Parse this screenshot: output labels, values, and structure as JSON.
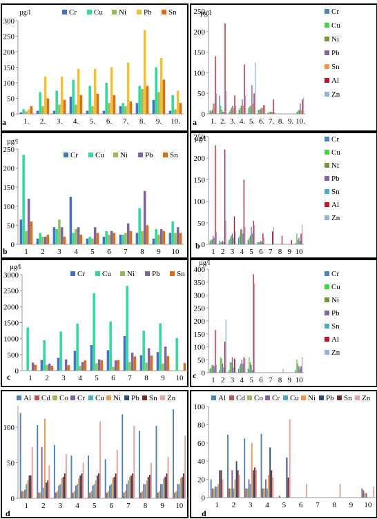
{
  "chart_data": [
    {
      "id": "aL",
      "type": "bar",
      "ylabel": "µg/l",
      "panel_letter": "a",
      "ylim": [
        0,
        300
      ],
      "yticks": [
        0,
        50,
        100,
        150,
        200,
        250,
        300
      ],
      "categories": [
        "1.",
        "2.",
        "3.",
        "4.",
        "5.",
        "6.",
        "7.",
        "8.",
        "9.",
        "10."
      ],
      "legend_position": "top",
      "series": [
        {
          "name": "Cr",
          "color": "#4472c4",
          "values": [
            5,
            10,
            10,
            55,
            10,
            10,
            25,
            35,
            45,
            10
          ]
        },
        {
          "name": "Cu",
          "color": "#2edc9a",
          "values": [
            15,
            70,
            75,
            110,
            90,
            100,
            35,
            90,
            150,
            60
          ]
        },
        {
          "name": "Ni",
          "color": "#9bbb59",
          "values": [
            8,
            25,
            30,
            30,
            25,
            35,
            25,
            80,
            70,
            15
          ]
        },
        {
          "name": "Pb",
          "color": "#f2c12e",
          "values": [
            15,
            120,
            120,
            145,
            145,
            150,
            165,
            270,
            180,
            75
          ]
        },
        {
          "name": "Sn",
          "color": "#e46c0a",
          "values": [
            25,
            50,
            45,
            60,
            65,
            60,
            40,
            90,
            110,
            35
          ]
        }
      ]
    },
    {
      "id": "aR",
      "type": "bar",
      "ylabel": "µg/l",
      "panel_letter": "a",
      "ylim": [
        0,
        250
      ],
      "yticks": [
        0,
        50,
        100,
        150,
        200,
        250
      ],
      "categories": [
        "1.",
        "2.",
        "3.",
        "4.",
        "5.",
        "6.",
        "7.",
        "8.",
        "9.",
        "10."
      ],
      "legend_position": "right",
      "series": [
        {
          "name": "Cr",
          "color": "#4f81bd",
          "values": [
            8,
            45,
            5,
            10,
            15,
            10,
            3,
            0,
            0,
            5
          ]
        },
        {
          "name": "Cu",
          "color": "#3ddc3d",
          "values": [
            5,
            20,
            10,
            15,
            18,
            10,
            3,
            0,
            0,
            8
          ]
        },
        {
          "name": "Ni",
          "color": "#77933c",
          "values": [
            10,
            10,
            15,
            20,
            20,
            12,
            5,
            0,
            0,
            10
          ]
        },
        {
          "name": "Pb",
          "color": "#8064a2",
          "values": [
            25,
            5,
            20,
            35,
            70,
            15,
            5,
            0,
            0,
            25
          ]
        },
        {
          "name": "Sn",
          "color": "#f79646",
          "values": [
            25,
            5,
            15,
            20,
            25,
            15,
            5,
            0,
            0,
            8
          ]
        },
        {
          "name": "Al",
          "color": "#c0142c",
          "values": [
            140,
            220,
            45,
            120,
            50,
            22,
            35,
            0,
            0,
            35
          ]
        },
        {
          "name": "Zn",
          "color": "#95b3d7",
          "values": [
            50,
            55,
            20,
            45,
            125,
            20,
            5,
            0,
            0,
            40
          ]
        }
      ]
    },
    {
      "id": "bL",
      "type": "bar",
      "ylabel": "µg/l",
      "panel_letter": "b",
      "ylim": [
        0,
        250
      ],
      "yticks": [
        0,
        50,
        100,
        150,
        200,
        250
      ],
      "categories": [
        "1",
        "2",
        "3",
        "4",
        "5",
        "6",
        "7",
        "8",
        "9",
        "10"
      ],
      "legend_position": "top",
      "series": [
        {
          "name": "Cr",
          "color": "#4472c4",
          "values": [
            65,
            15,
            45,
            125,
            15,
            20,
            25,
            30,
            15,
            30
          ]
        },
        {
          "name": "Cu",
          "color": "#2edc9a",
          "values": [
            235,
            30,
            40,
            30,
            20,
            35,
            25,
            95,
            40,
            60
          ]
        },
        {
          "name": "Ni",
          "color": "#9bbb59",
          "values": [
            35,
            20,
            65,
            40,
            15,
            25,
            30,
            35,
            25,
            30
          ]
        },
        {
          "name": "Pb",
          "color": "#8064a2",
          "values": [
            120,
            20,
            45,
            45,
            45,
            35,
            55,
            140,
            40,
            45
          ]
        },
        {
          "name": "Sn",
          "color": "#e46c0a",
          "values": [
            60,
            25,
            20,
            25,
            30,
            30,
            35,
            50,
            35,
            30
          ]
        }
      ]
    },
    {
      "id": "bR",
      "type": "bar",
      "ylabel": "µg/l",
      "panel_letter": "b",
      "ylim": [
        0,
        250
      ],
      "yticks": [
        0,
        50,
        100,
        150,
        200,
        250
      ],
      "categories": [
        "1",
        "2",
        "3",
        "4",
        "5",
        "6",
        "7",
        "8",
        "9",
        "10"
      ],
      "legend_position": "right",
      "series": [
        {
          "name": "Cr",
          "color": "#4f81bd",
          "values": [
            8,
            8,
            10,
            15,
            10,
            5,
            0,
            0,
            0,
            3
          ]
        },
        {
          "name": "Cu",
          "color": "#3ddc3d",
          "values": [
            10,
            5,
            15,
            20,
            15,
            5,
            0,
            0,
            0,
            25
          ]
        },
        {
          "name": "Ni",
          "color": "#77933c",
          "values": [
            12,
            5,
            20,
            35,
            20,
            5,
            0,
            0,
            0,
            10
          ]
        },
        {
          "name": "Pb",
          "color": "#8064a2",
          "values": [
            20,
            8,
            25,
            35,
            40,
            8,
            0,
            0,
            0,
            15
          ]
        },
        {
          "name": "Sn",
          "color": "#4bacc6",
          "values": [
            15,
            5,
            15,
            25,
            25,
            5,
            0,
            0,
            0,
            8
          ]
        },
        {
          "name": "Al",
          "color": "#c0142c",
          "values": [
            230,
            220,
            65,
            150,
            55,
            25,
            30,
            20,
            10,
            25
          ]
        },
        {
          "name": "Zn",
          "color": "#95b3d7",
          "values": [
            30,
            55,
            30,
            40,
            45,
            15,
            40,
            0,
            0,
            45
          ]
        }
      ]
    },
    {
      "id": "cL",
      "type": "bar",
      "ylabel": "µg/l",
      "panel_letter": "c",
      "ylim": [
        0,
        3000
      ],
      "yticks": [
        0,
        500,
        1000,
        1500,
        2000,
        2500,
        3000
      ],
      "categories": [
        "1",
        "2",
        "3",
        "4",
        "5",
        "6",
        "7",
        "8",
        "9",
        "10"
      ],
      "legend_position": "top",
      "series": [
        {
          "name": "Cr",
          "color": "#4472c4",
          "values": [
            0,
            330,
            400,
            620,
            800,
            640,
            1080,
            480,
            580,
            0
          ]
        },
        {
          "name": "Cu",
          "color": "#2edc9a",
          "values": [
            1350,
            950,
            1220,
            1470,
            2420,
            1530,
            2650,
            1250,
            1480,
            1020
          ]
        },
        {
          "name": "Ni",
          "color": "#9bbb59",
          "values": [
            0,
            180,
            0,
            150,
            230,
            120,
            270,
            250,
            220,
            0
          ]
        },
        {
          "name": "Pb",
          "color": "#8064a2",
          "values": [
            250,
            220,
            350,
            270,
            350,
            320,
            560,
            700,
            750,
            0
          ]
        },
        {
          "name": "Sn",
          "color": "#e46c0a",
          "values": [
            180,
            150,
            170,
            320,
            320,
            330,
            440,
            470,
            450,
            240
          ]
        }
      ]
    },
    {
      "id": "cR",
      "type": "bar",
      "ylabel": "µg/l",
      "panel_letter": "c",
      "ylim": [
        0,
        400
      ],
      "yticks": [
        0,
        50,
        100,
        150,
        200,
        250,
        300,
        350,
        400
      ],
      "categories": [
        "1",
        "2",
        "3",
        "4",
        "5",
        "6",
        "7",
        "8",
        "9",
        "10"
      ],
      "legend_position": "right",
      "series": [
        {
          "name": "Cr",
          "color": "#4f81bd",
          "values": [
            15,
            10,
            10,
            15,
            15,
            0,
            0,
            0,
            0,
            10
          ]
        },
        {
          "name": "Cu",
          "color": "#3ddc3d",
          "values": [
            20,
            60,
            40,
            25,
            60,
            0,
            0,
            0,
            0,
            50
          ]
        },
        {
          "name": "Ni",
          "color": "#77933c",
          "values": [
            30,
            55,
            40,
            35,
            40,
            0,
            0,
            0,
            0,
            35
          ]
        },
        {
          "name": "Pb",
          "color": "#8064a2",
          "values": [
            30,
            35,
            60,
            50,
            30,
            0,
            0,
            0,
            0,
            25
          ]
        },
        {
          "name": "Sn",
          "color": "#4bacc6",
          "values": [
            25,
            20,
            20,
            35,
            10,
            0,
            0,
            0,
            0,
            15
          ]
        },
        {
          "name": "Al",
          "color": "#c0142c",
          "values": [
            165,
            120,
            55,
            60,
            380,
            0,
            0,
            0,
            0,
            25
          ]
        },
        {
          "name": "Zn",
          "color": "#95b3d7",
          "values": [
            30,
            205,
            50,
            55,
            345,
            0,
            0,
            15,
            0,
            60
          ]
        }
      ]
    },
    {
      "id": "dL",
      "type": "bar",
      "panel_letter": "d",
      "ylim": [
        0,
        130
      ],
      "yticks": [
        0,
        50,
        100
      ],
      "categories": [
        "1",
        "2",
        "3",
        "4",
        "5",
        "6",
        "7",
        "8",
        "9",
        "10"
      ],
      "legend_position": "top",
      "series": [
        {
          "name": "Al",
          "color": "#4f81bd",
          "values": [
            120,
            103,
            75,
            60,
            60,
            55,
            118,
            95,
            102,
            125
          ]
        },
        {
          "name": "Cd",
          "color": "#c0504d",
          "values": [
            10,
            8,
            8,
            8,
            8,
            8,
            8,
            8,
            8,
            8
          ]
        },
        {
          "name": "Co",
          "color": "#9bbb59",
          "values": [
            10,
            8,
            10,
            10,
            10,
            10,
            10,
            10,
            10,
            10
          ]
        },
        {
          "name": "Cr",
          "color": "#8064a2",
          "values": [
            12,
            72,
            18,
            18,
            18,
            18,
            20,
            20,
            20,
            20
          ]
        },
        {
          "name": "Cu",
          "color": "#4bacc6",
          "values": [
            20,
            15,
            20,
            20,
            20,
            20,
            25,
            20,
            20,
            20
          ]
        },
        {
          "name": "Ni",
          "color": "#f79646",
          "values": [
            25,
            112,
            28,
            28,
            25,
            28,
            30,
            25,
            28,
            28
          ]
        },
        {
          "name": "Pb",
          "color": "#2c4d75",
          "values": [
            32,
            22,
            30,
            32,
            32,
            30,
            32,
            30,
            30,
            30
          ]
        },
        {
          "name": "Sn",
          "color": "#772c2a",
          "values": [
            32,
            25,
            35,
            35,
            35,
            35,
            35,
            33,
            35,
            35
          ]
        },
        {
          "name": "Zn",
          "color": "#e6a1a1",
          "values": [
            72,
            46,
            62,
            50,
            108,
            68,
            102,
            50,
            58,
            88
          ]
        }
      ]
    },
    {
      "id": "dR",
      "type": "bar",
      "panel_letter": "d",
      "ylim": [
        0,
        100
      ],
      "yticks": [
        0,
        20,
        40,
        60,
        80,
        100
      ],
      "categories": [
        "1",
        "2",
        "3",
        "4",
        "5",
        "6",
        "7",
        "8",
        "9",
        "10"
      ],
      "legend_position": "top",
      "series": [
        {
          "name": "Al",
          "color": "#4f81bd",
          "values": [
            20,
            69,
            65,
            70,
            0,
            0,
            0,
            0,
            0,
            10
          ]
        },
        {
          "name": "Cd",
          "color": "#c0504d",
          "values": [
            10,
            10,
            10,
            10,
            2,
            0,
            0,
            0,
            0,
            8
          ]
        },
        {
          "name": "Co",
          "color": "#9bbb59",
          "values": [
            10,
            10,
            10,
            10,
            0,
            0,
            0,
            0,
            0,
            5
          ]
        },
        {
          "name": "Cr",
          "color": "#8064a2",
          "values": [
            12,
            30,
            20,
            20,
            0,
            0,
            0,
            0,
            0,
            5
          ]
        },
        {
          "name": "Cu",
          "color": "#4bacc6",
          "values": [
            12,
            10,
            15,
            10,
            0,
            0,
            0,
            0,
            0,
            0
          ]
        },
        {
          "name": "Ni",
          "color": "#f79646",
          "values": [
            15,
            20,
            60,
            25,
            0,
            0,
            0,
            0,
            0,
            0
          ]
        },
        {
          "name": "Pb",
          "color": "#2c4d75",
          "values": [
            30,
            40,
            30,
            55,
            44,
            0,
            0,
            0,
            0,
            0
          ]
        },
        {
          "name": "Sn",
          "color": "#772c2a",
          "values": [
            30,
            30,
            33,
            30,
            22,
            0,
            0,
            0,
            0,
            0
          ]
        },
        {
          "name": "Zn",
          "color": "#e6a1a1",
          "values": [
            20,
            25,
            30,
            22,
            86,
            15,
            0,
            15,
            0,
            12
          ]
        }
      ]
    }
  ]
}
